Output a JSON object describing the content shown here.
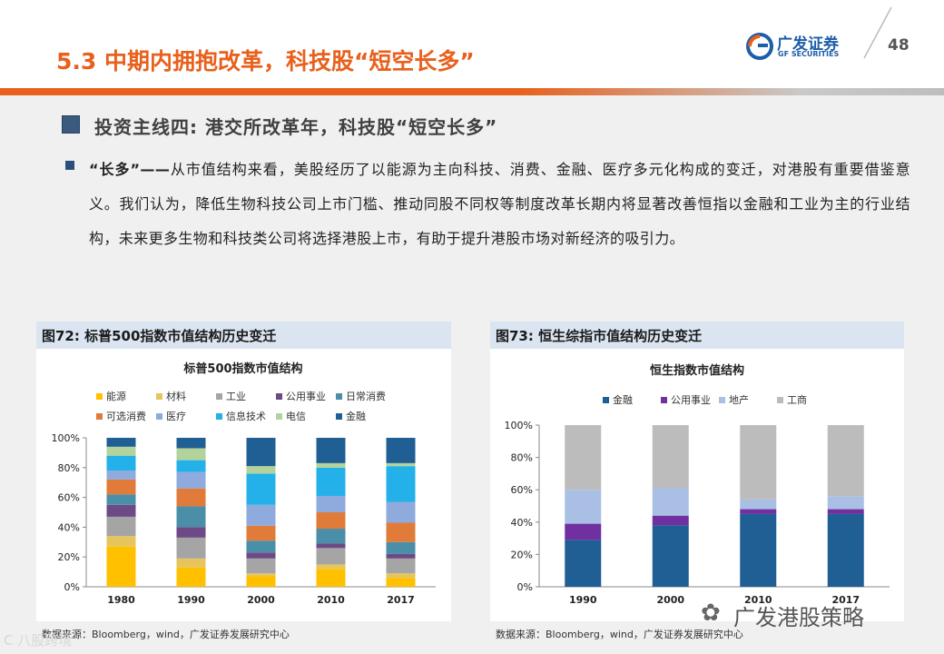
{
  "header": {
    "title": "5.3 中期内拥抱改革，科技股“短空长多”",
    "logo_cn": "广发证券",
    "logo_en": "GF SECURITIES",
    "page_number": "48",
    "brand_color": "#e8601c"
  },
  "section": {
    "subtitle": "投资主线四: 港交所改革年，科技股“短空长多”",
    "lead": "“长多”——",
    "body": "从市值结构来看，美股经历了以能源为主向科技、消费、金融、医疗多元化构成的变迁，对港股有重要借鉴意义。我们认为，降低生物科技公司上市门槛、推动同股不同权等制度改革长期内将显著改善恒指以金融和工业为主的行业结构，未来更多生物和科技类公司将选择港股上市，有助于提升港股市场对新经济的吸引力。"
  },
  "figures": [
    {
      "label": "图72:",
      "title": "标普500指数市值结构历史变迁",
      "source": "数据来源：Bloomberg，wind，广发证券发展研究中心"
    },
    {
      "label": "图73:",
      "title": "恒生综指市值结构历史变迁",
      "source": "数据来源：Bloomberg，wind，广发证券发展研究中心"
    }
  ],
  "watermark": {
    "text": "广发港股策略",
    "faint": "C 八股跨境"
  },
  "chart_data": [
    {
      "type": "bar",
      "stacked": true,
      "title": "标普500指数市值结构",
      "categories": [
        "1980",
        "1990",
        "2000",
        "2010",
        "2017"
      ],
      "ylim": [
        0,
        100
      ],
      "yticks": [
        "0%",
        "20%",
        "40%",
        "60%",
        "80%",
        "100%"
      ],
      "grid": false,
      "legend_position": "top",
      "series": [
        {
          "name": "能源",
          "color": "#ffc000",
          "values": [
            27,
            13,
            7,
            12,
            6
          ]
        },
        {
          "name": "材料",
          "color": "#e6c55c",
          "values": [
            7,
            6,
            2,
            3,
            3
          ]
        },
        {
          "name": "工业",
          "color": "#a5a5a5",
          "values": [
            13,
            14,
            10,
            11,
            10
          ]
        },
        {
          "name": "公用事业",
          "color": "#6d4a86",
          "values": [
            8,
            7,
            4,
            3,
            3
          ]
        },
        {
          "name": "日常消费",
          "color": "#4a8ea8",
          "values": [
            7,
            14,
            8,
            10,
            8
          ]
        },
        {
          "name": "可选消费",
          "color": "#e07b39",
          "values": [
            10,
            12,
            10,
            11,
            13
          ]
        },
        {
          "name": "医疗",
          "color": "#8faadc",
          "values": [
            6,
            11,
            14,
            11,
            14
          ]
        },
        {
          "name": "信息技术",
          "color": "#24b0e8",
          "values": [
            10,
            8,
            21,
            19,
            24
          ]
        },
        {
          "name": "电信",
          "color": "#b4d39a",
          "values": [
            6,
            8,
            5,
            3,
            2
          ]
        },
        {
          "name": "金融",
          "color": "#1f5f94",
          "values": [
            6,
            7,
            19,
            17,
            17
          ]
        }
      ]
    },
    {
      "type": "bar",
      "stacked": true,
      "title": "恒生指数市值结构",
      "categories": [
        "1990",
        "2000",
        "2010",
        "2017"
      ],
      "ylim": [
        0,
        100
      ],
      "yticks": [
        "0%",
        "20%",
        "40%",
        "60%",
        "80%",
        "100%"
      ],
      "grid": false,
      "legend_position": "top",
      "series": [
        {
          "name": "金融",
          "color": "#1f5f94",
          "values": [
            29,
            38,
            45,
            45
          ]
        },
        {
          "name": "公用事业",
          "color": "#7030a0",
          "values": [
            10,
            6,
            3,
            3
          ]
        },
        {
          "name": "地产",
          "color": "#a9bfe4",
          "values": [
            21,
            17,
            6,
            8
          ]
        },
        {
          "name": "工商",
          "color": "#bcbcbc",
          "values": [
            40,
            39,
            46,
            44
          ]
        }
      ]
    }
  ]
}
